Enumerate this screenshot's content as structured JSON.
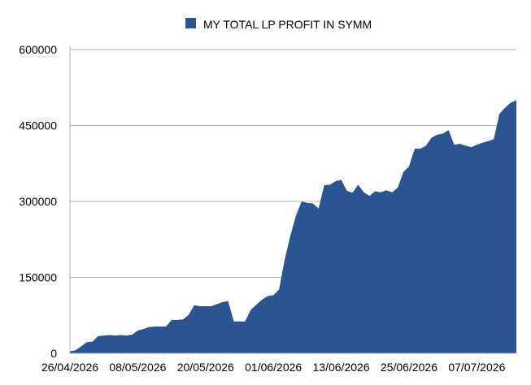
{
  "chart_data": {
    "type": "area",
    "title": "",
    "xlabel": "",
    "ylabel": "",
    "legend": {
      "position": "top",
      "entries": [
        "MY TOTAL LP PROFIT IN SYMM"
      ]
    },
    "grid": {
      "horizontal": true,
      "vertical": false
    },
    "ylim": [
      0,
      600000
    ],
    "y_ticks": [
      0,
      150000,
      300000,
      450000,
      600000
    ],
    "y_tick_labels": [
      "0",
      "150000",
      "300000",
      "450000",
      "600000"
    ],
    "x_tick_labels": [
      "26/04/2026",
      "08/05/2026",
      "20/05/2026",
      "01/06/2026",
      "13/06/2026",
      "25/06/2026",
      "07/07/2026"
    ],
    "colors": {
      "series": "#2a5591",
      "grid": "#b3b3b3",
      "axis": "#b3b3b3"
    },
    "series": [
      {
        "name": "MY TOTAL LP PROFIT IN SYMM",
        "x": [
          "26/04/2026",
          "27/04/2026",
          "28/04/2026",
          "29/04/2026",
          "30/04/2026",
          "01/05/2026",
          "02/05/2026",
          "03/05/2026",
          "04/05/2026",
          "05/05/2026",
          "06/05/2026",
          "07/05/2026",
          "08/05/2026",
          "09/05/2026",
          "10/05/2026",
          "11/05/2026",
          "12/05/2026",
          "13/05/2026",
          "14/05/2026",
          "15/05/2026",
          "16/05/2026",
          "17/05/2026",
          "18/05/2026",
          "19/05/2026",
          "20/05/2026",
          "21/05/2026",
          "22/05/2026",
          "23/05/2026",
          "24/05/2026",
          "25/05/2026",
          "26/05/2026",
          "27/05/2026",
          "28/05/2026",
          "29/05/2026",
          "30/05/2026",
          "31/05/2026",
          "01/06/2026",
          "02/06/2026",
          "03/06/2026",
          "04/06/2026",
          "05/06/2026",
          "06/06/2026",
          "07/06/2026",
          "08/06/2026",
          "09/06/2026",
          "10/06/2026",
          "11/06/2026",
          "12/06/2026",
          "13/06/2026",
          "14/06/2026",
          "15/06/2026",
          "16/06/2026",
          "17/06/2026",
          "18/06/2026",
          "19/06/2026",
          "20/06/2026",
          "21/06/2026",
          "22/06/2026",
          "23/06/2026",
          "24/06/2026",
          "25/06/2026",
          "26/06/2026",
          "27/06/2026",
          "28/06/2026",
          "29/06/2026",
          "30/06/2026",
          "01/07/2026",
          "02/07/2026",
          "03/07/2026",
          "04/07/2026",
          "05/07/2026",
          "06/07/2026",
          "07/07/2026",
          "08/07/2026",
          "09/07/2026",
          "10/07/2026",
          "11/07/2026",
          "12/07/2026",
          "13/07/2026",
          "14/07/2026"
        ],
        "values": [
          4000,
          6000,
          14000,
          22000,
          23000,
          34000,
          35000,
          36000,
          35000,
          36000,
          35000,
          37000,
          45000,
          48000,
          52000,
          53000,
          53000,
          53000,
          66000,
          66000,
          67000,
          76000,
          95000,
          93000,
          93000,
          93000,
          97000,
          101000,
          103000,
          63000,
          63000,
          63000,
          86000,
          96000,
          106000,
          113000,
          115000,
          126000,
          185000,
          232000,
          272000,
          300000,
          297000,
          296000,
          286000,
          332000,
          333000,
          340000,
          343000,
          321000,
          317000,
          333000,
          318000,
          311000,
          320000,
          318000,
          322000,
          318000,
          327000,
          358000,
          369000,
          404000,
          404000,
          410000,
          426000,
          432000,
          434000,
          441000,
          412000,
          414000,
          410000,
          407000,
          412000,
          416000,
          419000,
          423000,
          473000,
          485000,
          495000,
          500000
        ]
      }
    ]
  }
}
